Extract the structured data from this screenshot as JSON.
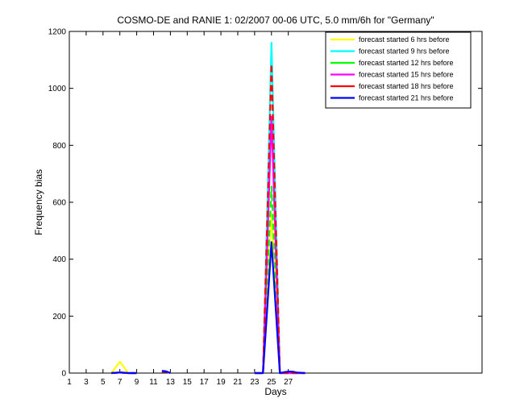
{
  "chart_data": {
    "type": "line",
    "title": "COSMO-DE and RANIE 1: 02/2007 00-06 UTC, 5.0 mm/6h for \"Germany\"",
    "xlabel": "Days",
    "ylabel": "Frequency bias",
    "xlim": [
      1,
      50
    ],
    "ylim": [
      0,
      1200
    ],
    "xticks": [
      1,
      3,
      5,
      7,
      9,
      11,
      13,
      15,
      17,
      19,
      21,
      23,
      25,
      27
    ],
    "yticks": [
      0,
      200,
      400,
      600,
      800,
      1000,
      1200
    ],
    "legend_position": "top-right",
    "x": [
      1,
      1.5,
      2,
      2.5,
      3,
      3.5,
      4,
      4.5,
      5,
      5.5,
      6,
      6.5,
      7,
      7.5,
      8,
      8.5,
      9,
      9.5,
      10,
      10.5,
      11,
      11.5,
      12,
      12.5,
      13,
      13.5,
      14,
      14.5,
      15,
      15.5,
      16,
      16.5,
      17,
      17.5,
      18,
      18.5,
      19,
      19.5,
      20,
      20.5,
      21,
      21.5,
      22,
      22.5,
      23,
      23.5,
      24,
      24.5,
      25,
      25.5,
      26,
      26.5,
      27,
      27.5,
      28,
      28.5,
      29,
      29.5,
      30
    ],
    "series": [
      {
        "name": "forecast started 6 hrs before",
        "color": "#ffff00",
        "values": [
          null,
          null,
          null,
          null,
          null,
          null,
          null,
          null,
          null,
          null,
          0,
          20,
          40,
          20,
          0,
          0,
          0,
          null,
          null,
          null,
          null,
          null,
          5,
          5,
          0,
          null,
          null,
          null,
          null,
          null,
          null,
          null,
          null,
          null,
          null,
          null,
          null,
          null,
          null,
          null,
          null,
          null,
          null,
          null,
          0,
          0,
          0,
          280,
          560,
          280,
          0,
          0,
          0,
          0,
          0,
          0,
          0,
          null,
          null
        ]
      },
      {
        "name": "forecast started 9 hrs before",
        "color": "#00ffff",
        "values": [
          null,
          null,
          null,
          null,
          null,
          null,
          null,
          null,
          null,
          null,
          0,
          1,
          2,
          1,
          0,
          0,
          0,
          null,
          null,
          null,
          null,
          null,
          5,
          5,
          0,
          null,
          null,
          null,
          null,
          null,
          null,
          null,
          null,
          null,
          null,
          null,
          null,
          null,
          null,
          null,
          null,
          null,
          null,
          null,
          0,
          0,
          0,
          580,
          1160,
          580,
          0,
          0,
          0,
          0,
          0,
          0,
          0,
          null,
          null
        ]
      },
      {
        "name": "forecast started 12 hrs before",
        "color": "#00ff00",
        "values": [
          null,
          null,
          null,
          null,
          null,
          null,
          null,
          null,
          null,
          null,
          0,
          1,
          2,
          1,
          0,
          0,
          0,
          null,
          null,
          null,
          null,
          null,
          5,
          5,
          0,
          null,
          null,
          null,
          null,
          null,
          null,
          null,
          null,
          null,
          null,
          null,
          null,
          null,
          null,
          null,
          null,
          null,
          null,
          null,
          0,
          0,
          0,
          330,
          655,
          330,
          0,
          0,
          0,
          0,
          0,
          0,
          0,
          null,
          null
        ]
      },
      {
        "name": "forecast started 15 hrs before",
        "color": "#ff00ff",
        "values": [
          null,
          null,
          null,
          null,
          null,
          null,
          null,
          null,
          null,
          null,
          0,
          1,
          2,
          1,
          0,
          0,
          0,
          null,
          null,
          null,
          null,
          null,
          5,
          5,
          0,
          null,
          null,
          null,
          null,
          null,
          null,
          null,
          null,
          null,
          null,
          null,
          null,
          null,
          null,
          null,
          null,
          null,
          null,
          null,
          0,
          0,
          0,
          450,
          900,
          450,
          0,
          0,
          0,
          0,
          0,
          0,
          0,
          null,
          null
        ]
      },
      {
        "name": "forecast started 18 hrs before",
        "color": "#ff0000",
        "values": [
          null,
          null,
          null,
          null,
          null,
          null,
          null,
          null,
          null,
          null,
          0,
          1,
          2,
          1,
          0,
          0,
          0,
          null,
          null,
          null,
          null,
          null,
          5,
          5,
          0,
          null,
          null,
          null,
          null,
          null,
          null,
          null,
          null,
          null,
          null,
          null,
          null,
          null,
          null,
          null,
          null,
          null,
          null,
          null,
          0,
          0,
          0,
          540,
          1085,
          540,
          0,
          0,
          0,
          0,
          0,
          0,
          0,
          null,
          null
        ]
      },
      {
        "name": "forecast started 21 hrs before",
        "color": "#0000ff",
        "values": [
          null,
          null,
          null,
          null,
          null,
          null,
          null,
          null,
          null,
          null,
          0,
          1,
          2,
          1,
          0,
          0,
          0,
          null,
          null,
          null,
          null,
          null,
          8,
          6,
          0,
          null,
          null,
          null,
          null,
          null,
          null,
          null,
          null,
          null,
          null,
          null,
          null,
          null,
          null,
          null,
          null,
          null,
          null,
          null,
          0,
          0,
          0,
          230,
          460,
          230,
          0,
          3,
          5,
          5,
          2,
          1,
          0,
          null,
          null
        ]
      }
    ]
  }
}
